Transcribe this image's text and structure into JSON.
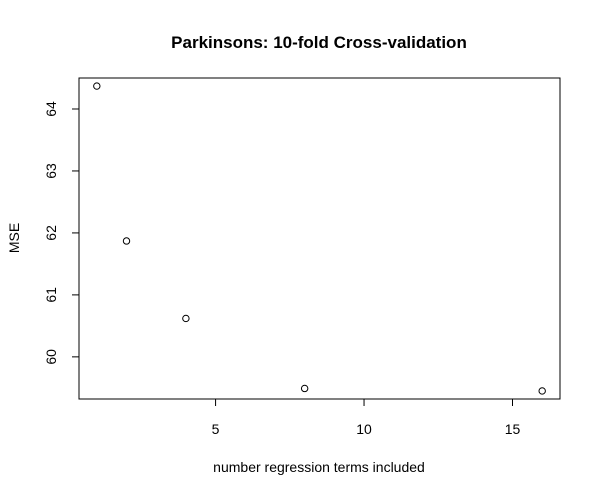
{
  "chart_data": {
    "type": "scatter",
    "title": "Parkinsons: 10-fold Cross-validation",
    "xlabel": "number regression terms included",
    "ylabel": "MSE",
    "x": [
      1,
      2,
      4,
      8,
      16
    ],
    "y": [
      64.37,
      61.87,
      60.62,
      59.49,
      59.45
    ],
    "xlim": [
      0.4,
      16.6
    ],
    "ylim": [
      59.32,
      64.5
    ],
    "x_ticks": [
      5,
      10,
      15
    ],
    "y_ticks": [
      60,
      61,
      62,
      63,
      64
    ],
    "grid": false,
    "legend": "none",
    "marker": "open-circle",
    "colors": {
      "marker": "#000000",
      "axis": "#000000",
      "background": "#ffffff"
    }
  }
}
